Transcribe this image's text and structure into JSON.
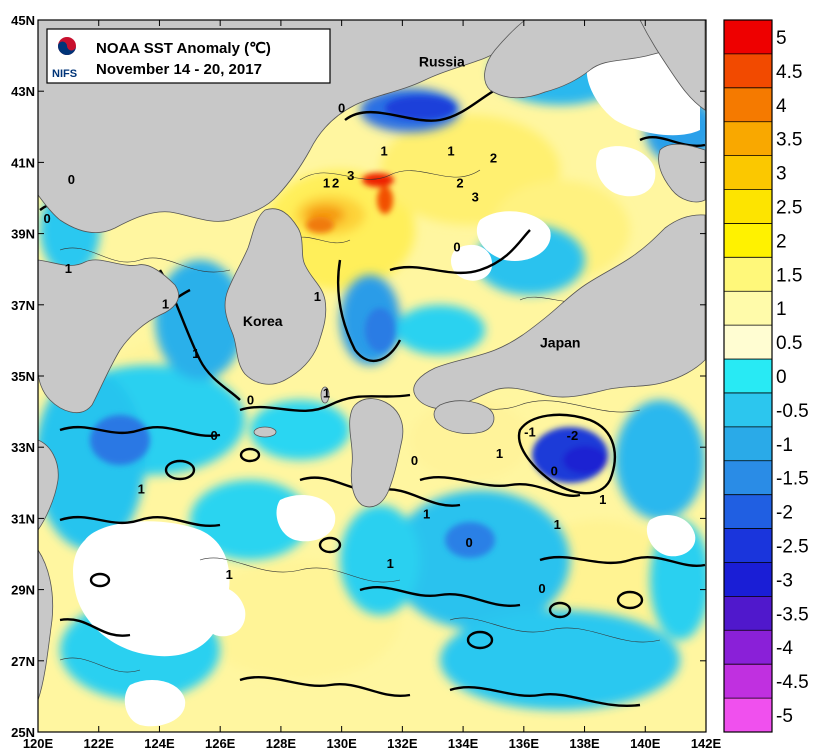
{
  "title": {
    "line1": "NOAA SST Anomaly (℃)",
    "line2": "November 14 - 20, 2017",
    "logo_text": "NIFS"
  },
  "axes": {
    "lon_labels": [
      "120E",
      "122E",
      "124E",
      "126E",
      "128E",
      "130E",
      "132E",
      "134E",
      "136E",
      "138E",
      "140E",
      "142E"
    ],
    "lat_labels": [
      "25N",
      "27N",
      "29N",
      "31N",
      "33N",
      "35N",
      "37N",
      "39N",
      "41N",
      "43N",
      "45N"
    ],
    "lon_range": [
      120,
      142
    ],
    "lat_range": [
      25,
      45
    ]
  },
  "places": [
    {
      "name": "Russia",
      "lon": 133.3,
      "lat": 43.7
    },
    {
      "name": "Korea",
      "lon": 127.4,
      "lat": 36.4
    },
    {
      "name": "Japan",
      "lon": 137.2,
      "lat": 35.8
    }
  ],
  "colorbar": {
    "labels": [
      "5",
      "4.5",
      "4",
      "3.5",
      "3",
      "2.5",
      "2",
      "1.5",
      "1",
      "0.5",
      "0",
      "-0.5",
      "-1",
      "-1.5",
      "-2",
      "-2.5",
      "-3",
      "-3.5",
      "-4",
      "-4.5",
      "-5"
    ],
    "colors": [
      "#ee0000",
      "#f24a00",
      "#f57a00",
      "#f9a800",
      "#fbc800",
      "#fde400",
      "#fff200",
      "#fff87a",
      "#fffbaa",
      "#fffdd2",
      "#28eaf4",
      "#2cc6ee",
      "#2aaae8",
      "#2a8ce6",
      "#205fe2",
      "#1a35dc",
      "#1a1ed6",
      "#5018cc",
      "#8a20d8",
      "#c030e0",
      "#f050ee"
    ],
    "range": [
      -5,
      5
    ]
  },
  "contour_numbers": [
    {
      "text": "0",
      "lon": 130.0,
      "lat": 42.4
    },
    {
      "text": "1",
      "lon": 131.4,
      "lat": 41.2
    },
    {
      "text": "1",
      "lon": 129.5,
      "lat": 40.3
    },
    {
      "text": "2",
      "lon": 129.8,
      "lat": 40.3
    },
    {
      "text": "3",
      "lon": 130.3,
      "lat": 40.5
    },
    {
      "text": "1",
      "lon": 133.6,
      "lat": 41.2
    },
    {
      "text": "2",
      "lon": 135.0,
      "lat": 41.0
    },
    {
      "text": "2",
      "lon": 133.9,
      "lat": 40.3
    },
    {
      "text": "3",
      "lon": 134.4,
      "lat": 39.9
    },
    {
      "text": "0",
      "lon": 133.8,
      "lat": 38.5
    },
    {
      "text": "0",
      "lon": 121.1,
      "lat": 40.4
    },
    {
      "text": "0",
      "lon": 120.3,
      "lat": 39.3
    },
    {
      "text": "1",
      "lon": 121.0,
      "lat": 37.9
    },
    {
      "text": "1",
      "lon": 124.2,
      "lat": 36.9
    },
    {
      "text": "1",
      "lon": 125.2,
      "lat": 35.5
    },
    {
      "text": "1",
      "lon": 129.2,
      "lat": 37.1
    },
    {
      "text": "1",
      "lon": 129.5,
      "lat": 34.4
    },
    {
      "text": "0",
      "lon": 127.0,
      "lat": 34.2
    },
    {
      "text": "0",
      "lon": 125.8,
      "lat": 33.2
    },
    {
      "text": "0",
      "lon": 132.4,
      "lat": 32.5
    },
    {
      "text": "1",
      "lon": 132.8,
      "lat": 31.0
    },
    {
      "text": "1",
      "lon": 135.2,
      "lat": 32.7
    },
    {
      "text": "-1",
      "lon": 136.2,
      "lat": 33.3
    },
    {
      "text": "-2",
      "lon": 137.6,
      "lat": 33.2
    },
    {
      "text": "0",
      "lon": 137.0,
      "lat": 32.2
    },
    {
      "text": "1",
      "lon": 138.6,
      "lat": 31.4
    },
    {
      "text": "1",
      "lon": 137.1,
      "lat": 30.7
    },
    {
      "text": "0",
      "lon": 134.2,
      "lat": 30.2
    },
    {
      "text": "0",
      "lon": 136.6,
      "lat": 28.9
    },
    {
      "text": "1",
      "lon": 131.6,
      "lat": 29.6
    },
    {
      "text": "1",
      "lon": 126.3,
      "lat": 29.3
    },
    {
      "text": "1",
      "lon": 123.4,
      "lat": 31.7
    }
  ]
}
